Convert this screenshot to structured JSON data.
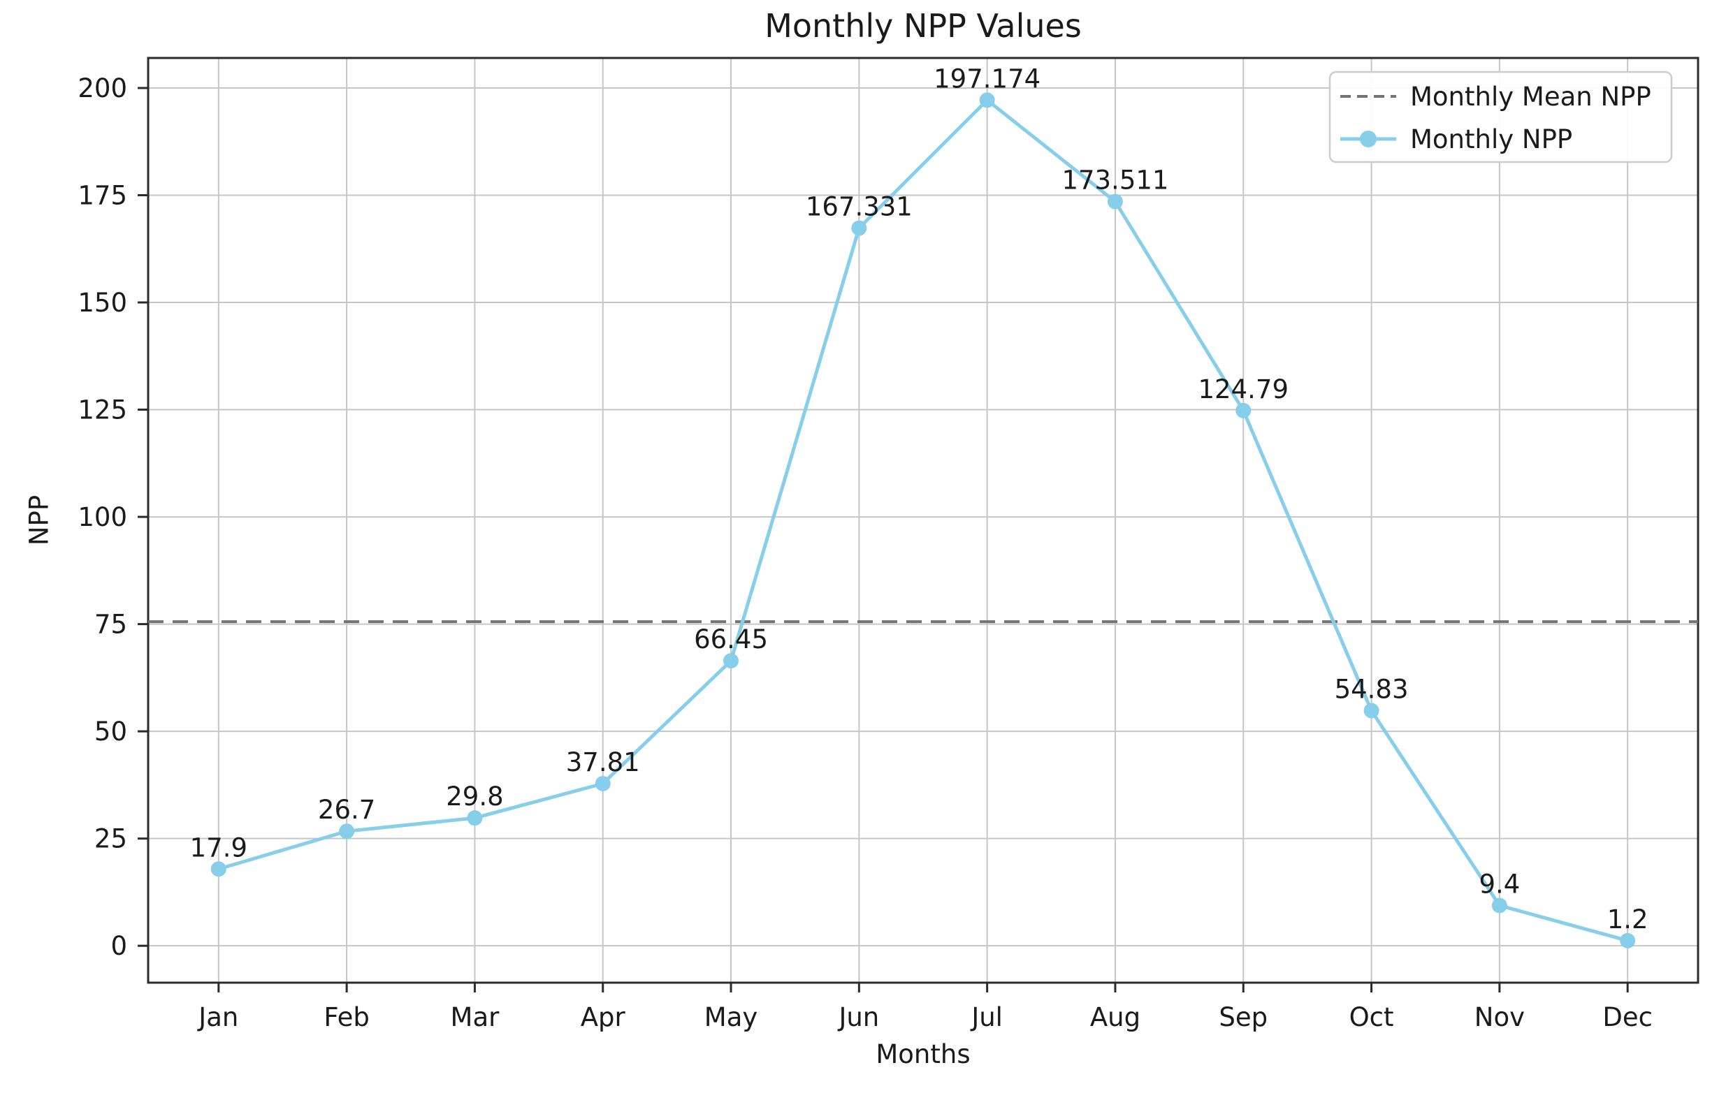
{
  "chart_data": {
    "type": "line",
    "title": "Monthly NPP Values",
    "xlabel": "Months",
    "ylabel": "NPP",
    "categories": [
      "Jan",
      "Feb",
      "Mar",
      "Apr",
      "May",
      "Jun",
      "Jul",
      "Aug",
      "Sep",
      "Oct",
      "Nov",
      "Dec"
    ],
    "series": [
      {
        "name": "Monthly NPP",
        "kind": "line-with-markers",
        "values": [
          17.9,
          26.7,
          29.8,
          37.81,
          66.45,
          167.331,
          197.174,
          173.511,
          124.79,
          54.83,
          9.4,
          1.2
        ],
        "point_labels": [
          "17.9",
          "26.7",
          "29.8",
          "37.81",
          "66.45",
          "167.331",
          "197.174",
          "173.511",
          "124.79",
          "54.83",
          "9.4",
          "1.2"
        ],
        "color": "#87ceeb",
        "line_style": "solid",
        "marker": "circle"
      },
      {
        "name": "Monthly Mean NPP",
        "kind": "hline",
        "value": 75.57,
        "color": "#747474",
        "line_style": "dashed",
        "marker": "none"
      }
    ],
    "yticks": [
      0,
      25,
      50,
      75,
      100,
      125,
      150,
      175,
      200
    ],
    "ylim": [
      -8.6,
      207.0
    ],
    "grid": true,
    "legend": {
      "position": "upper right",
      "entries": [
        "Monthly Mean NPP",
        "Monthly NPP"
      ]
    }
  },
  "colors": {
    "series_line": "#87ceeb",
    "mean_line": "#747474",
    "grid": "#c6c6c6",
    "spine": "#2b2b2b",
    "text": "#1a1a1a",
    "legend_border": "#cccccc",
    "background": "#ffffff"
  }
}
